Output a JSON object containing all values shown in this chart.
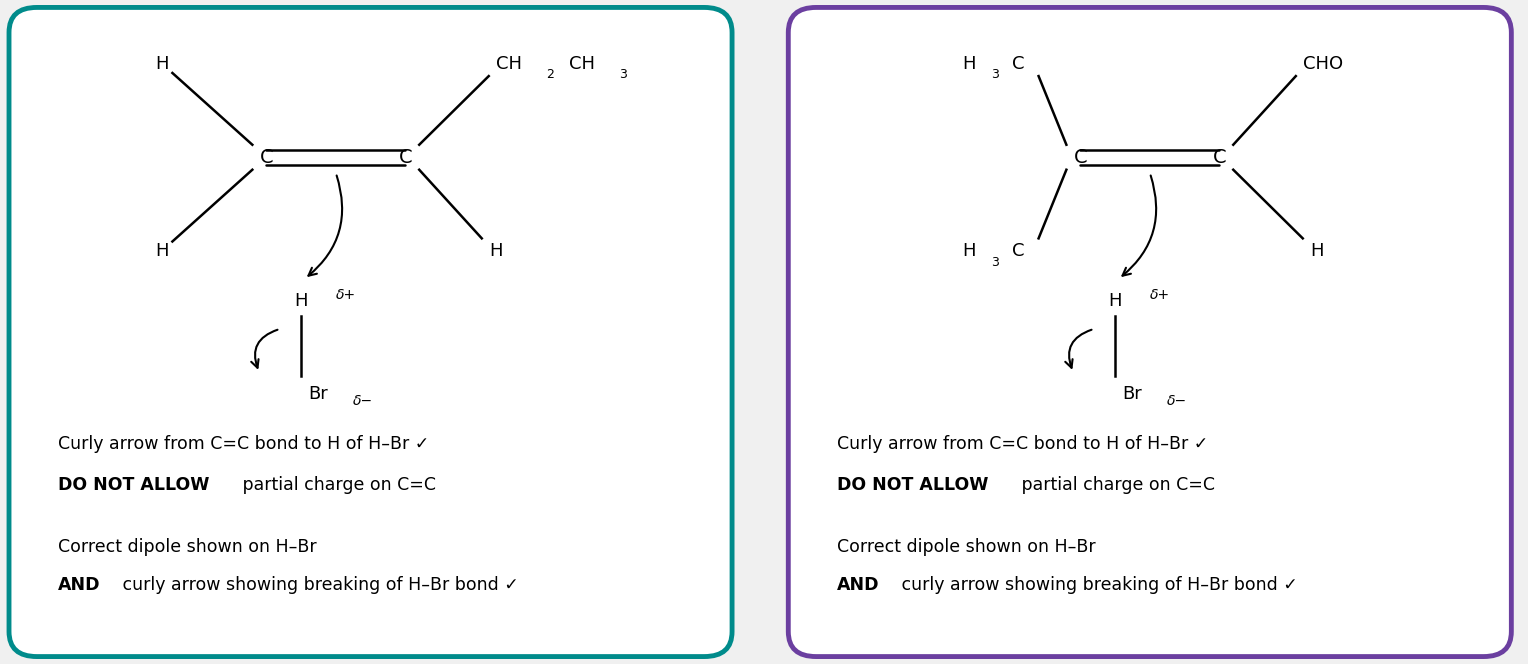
{
  "bg_color": "#f0f0f0",
  "panel1_border_color": "#008B8B",
  "panel2_border_color": "#6B3FA0",
  "panel_bg": "#ffffff",
  "panel1": {
    "line1": "Curly arrow from C=C bond to H of H–Br ✓",
    "line2_bold": "DO NOT ALLOW",
    "line2_rest": " partial charge on C=C",
    "line3": "Correct dipole shown on H–Br",
    "line4_bold": "AND",
    "line4_rest": " curly arrow showing breaking of H–Br bond ✓"
  },
  "panel2": {
    "line1": "Curly arrow from C=C bond to H of H–Br ✓",
    "line2_bold": "DO NOT ALLOW",
    "line2_rest": " partial charge on C=C",
    "line3": "Correct dipole shown on H–Br",
    "line4_bold": "AND",
    "line4_rest": " curly arrow showing breaking of H–Br bond ✓"
  }
}
